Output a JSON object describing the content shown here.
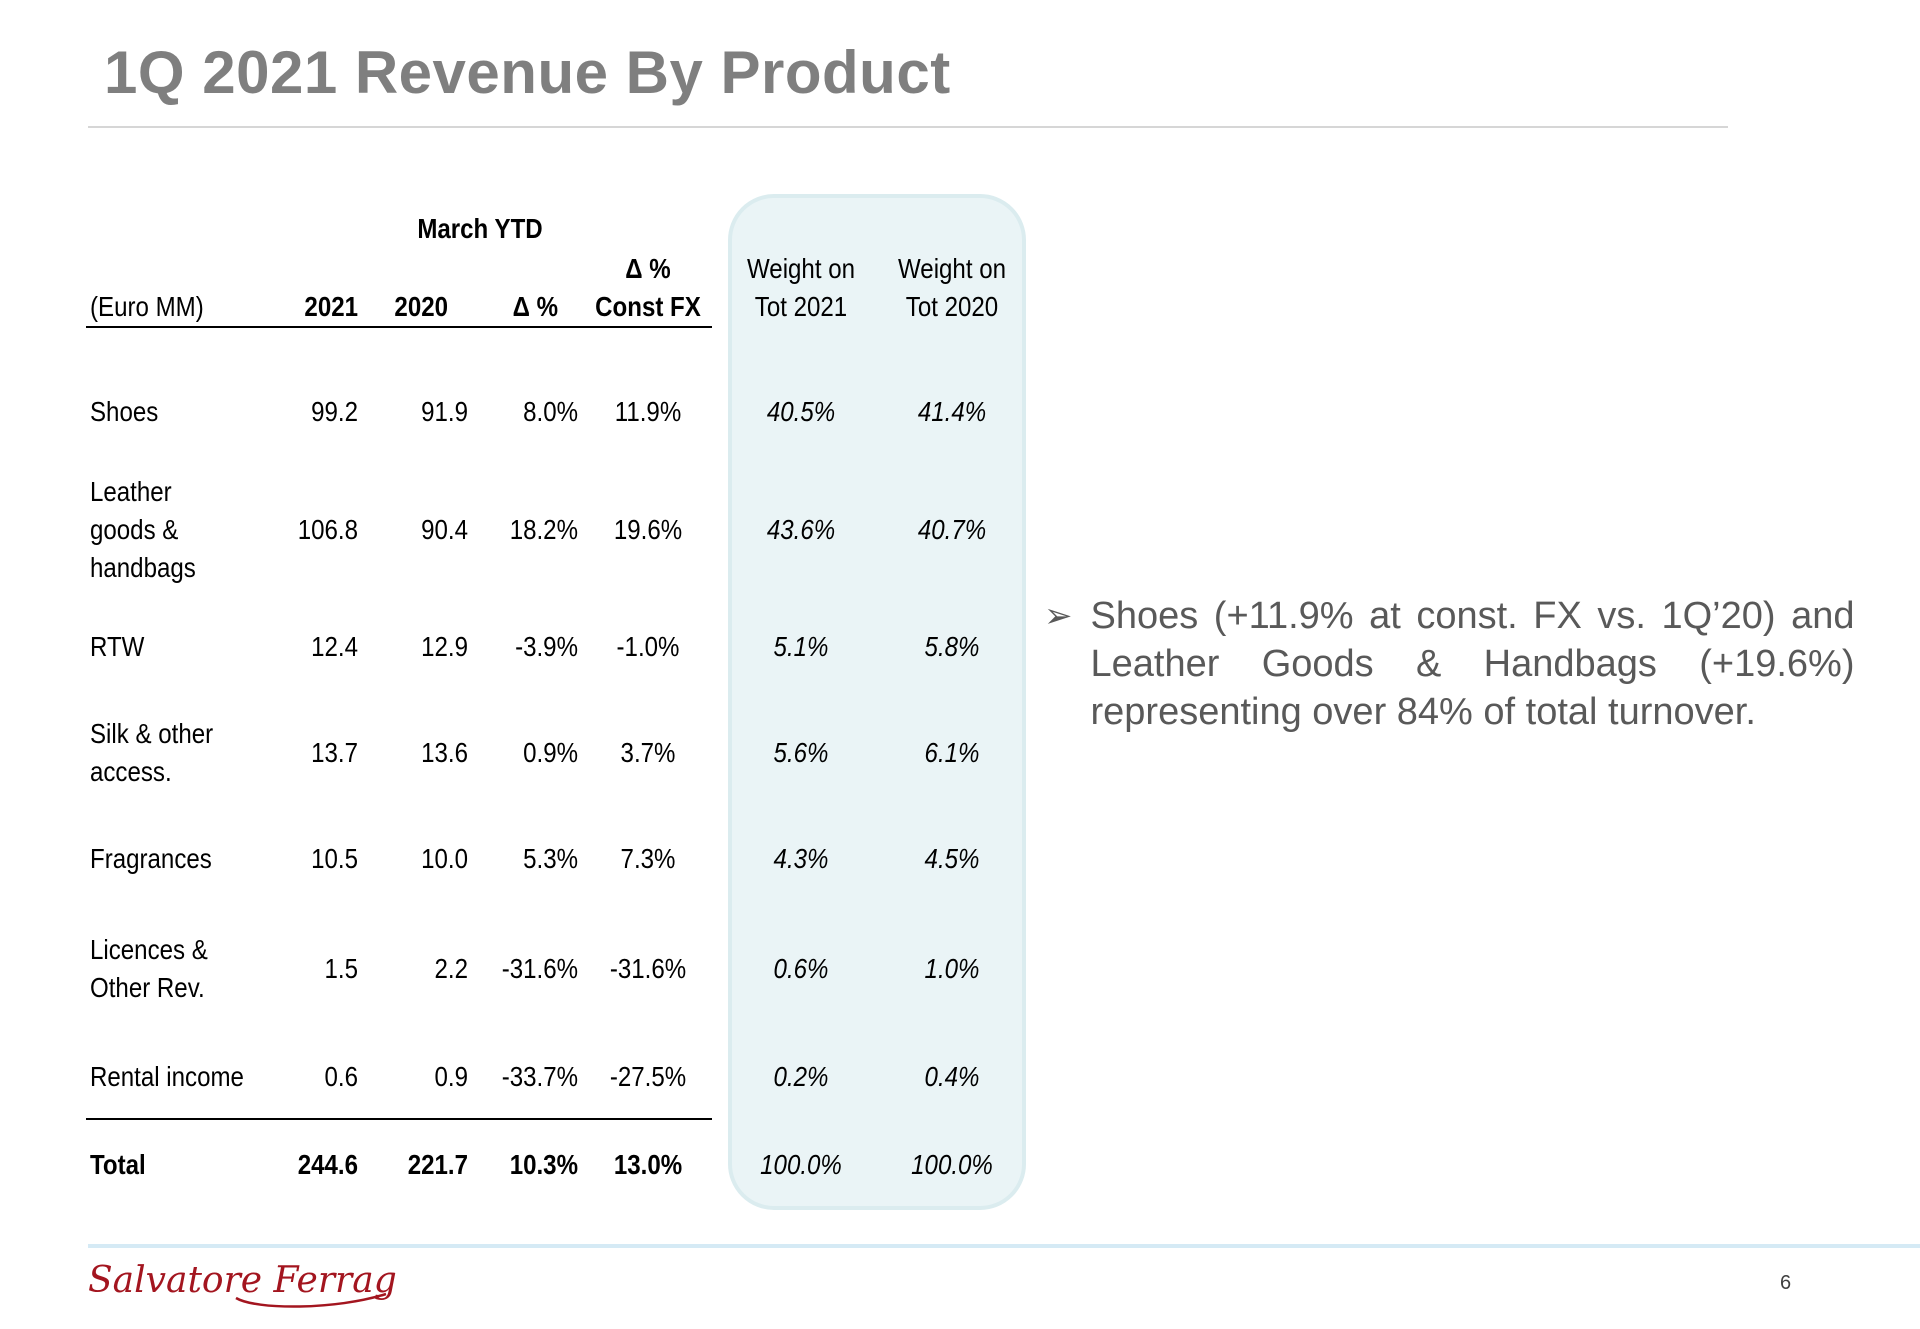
{
  "title": "1Q 2021 Revenue By Product",
  "table": {
    "group_header": "March YTD",
    "unit_label": "(Euro MM)",
    "col_2021": "2021",
    "col_2020": "2020",
    "col_delta": "Δ %",
    "col_const_line1": "Δ %",
    "col_const_line2": "Const FX",
    "weight_2021_line1": "Weight on",
    "weight_2021_line2": "Tot 2021",
    "weight_2020_line1": "Weight on",
    "weight_2020_line2": "Tot 2020",
    "rows": [
      {
        "label_lines": [
          "Shoes"
        ],
        "v2021": "99.2",
        "v2020": "91.9",
        "delta": "8.0%",
        "const_fx": "11.9%",
        "w2021": "40.5%",
        "w2020": "41.4%"
      },
      {
        "label_lines": [
          "Leather",
          "goods &",
          "handbags"
        ],
        "v2021": "106.8",
        "v2020": "90.4",
        "delta": "18.2%",
        "const_fx": "19.6%",
        "w2021": "43.6%",
        "w2020": "40.7%"
      },
      {
        "label_lines": [
          "RTW"
        ],
        "v2021": "12.4",
        "v2020": "12.9",
        "delta": "-3.9%",
        "const_fx": "-1.0%",
        "w2021": "5.1%",
        "w2020": "5.8%"
      },
      {
        "label_lines": [
          "Silk & other",
          "access."
        ],
        "v2021": "13.7",
        "v2020": "13.6",
        "delta": "0.9%",
        "const_fx": "3.7%",
        "w2021": "5.6%",
        "w2020": "6.1%"
      },
      {
        "label_lines": [
          "Fragrances"
        ],
        "v2021": "10.5",
        "v2020": "10.0",
        "delta": "5.3%",
        "const_fx": "7.3%",
        "w2021": "4.3%",
        "w2020": "4.5%"
      },
      {
        "label_lines": [
          "Licences &",
          "Other Rev."
        ],
        "v2021": "1.5",
        "v2020": "2.2",
        "delta": "-31.6%",
        "const_fx": "-31.6%",
        "w2021": "0.6%",
        "w2020": "1.0%"
      },
      {
        "label_lines": [
          "Rental income"
        ],
        "v2021": "0.6",
        "v2020": "0.9",
        "delta": "-33.7%",
        "const_fx": "-27.5%",
        "w2021": "0.2%",
        "w2020": "0.4%"
      }
    ],
    "total": {
      "label": "Total",
      "v2021": "244.6",
      "v2020": "221.7",
      "delta": "10.3%",
      "const_fx": "13.0%",
      "w2021": "100.0%",
      "w2020": "100.0%"
    }
  },
  "bullet_text": "Shoes (+11.9% at const. FX vs. 1Q’20) and Leather Goods & Handbags (+19.6%) representing over 84% of total turnover.",
  "logo_text": "Salvatore Ferragamo",
  "page_number": "6",
  "colors": {
    "title": "#7f7f7f",
    "panel_bg": "#eaf4f6",
    "logo": "#a3151f",
    "footer_rule": "#d5eaf5"
  }
}
